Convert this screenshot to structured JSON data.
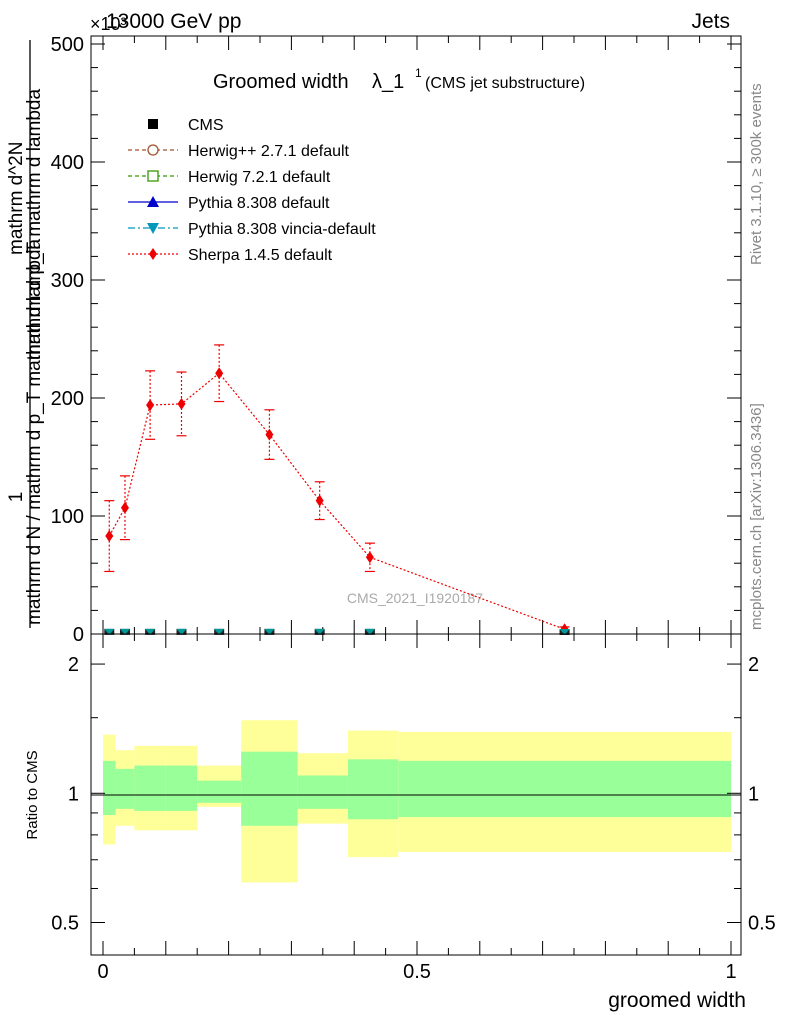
{
  "header": {
    "left": "13000 GeV pp",
    "right": "Jets",
    "exponent": "×10³"
  },
  "side_labels": {
    "rivet": "Rivet 3.1.10, ≥ 300k events",
    "mcplots": "mcplots.cern.ch [arXiv:1306.3436]"
  },
  "watermark": "CMS_2021_I1920187",
  "chart_data": [
    {
      "type": "line",
      "title": "Groomed width",
      "title_symbol": "λ_1",
      "title_sup": "1",
      "title_note": "(CMS jet substructure)",
      "ylabel_top": "1",
      "ylabel_bottom": "mathrm d N / mathrm d p_T mathrm d lambda",
      "ylabel_num": "mathrm d^2N",
      "ylabel_den": "mathrm d p_T mathrm d lambda",
      "xlim": [
        0,
        1
      ],
      "ylim": [
        0,
        500
      ],
      "yticks": [
        "0",
        "100",
        "200",
        "300",
        "400",
        "500"
      ],
      "legend": [
        {
          "name": "CMS",
          "color": "#000000",
          "marker": "square-filled"
        },
        {
          "name": "Herwig++ 2.7.1 default",
          "color": "#a0522d",
          "marker": "circle-open"
        },
        {
          "name": "Herwig 7.2.1 default",
          "color": "#339900",
          "marker": "square-open"
        },
        {
          "name": "Pythia 8.308 default",
          "color": "#0000cc",
          "marker": "triangle-up"
        },
        {
          "name": "Pythia 8.308 vincia-default",
          "color": "#0099bb",
          "marker": "triangle-down"
        },
        {
          "name": "Sherpa 1.4.5 default",
          "color": "#ee0000",
          "marker": "diamond"
        }
      ],
      "series": [
        {
          "name": "Sherpa 1.4.5 default",
          "x": [
            0.01,
            0.035,
            0.075,
            0.125,
            0.185,
            0.265,
            0.345,
            0.425,
            0.735
          ],
          "y": [
            83,
            107,
            194,
            195,
            221,
            169,
            113,
            65,
            4
          ],
          "err": [
            30,
            27,
            29,
            27,
            24,
            21,
            16,
            12,
            2
          ]
        },
        {
          "name": "CMS",
          "x": [
            0.01,
            0.035,
            0.075,
            0.125,
            0.185,
            0.265,
            0.345,
            0.425,
            0.735
          ],
          "y": [
            0.1,
            0.1,
            0.1,
            0.1,
            0.1,
            0.1,
            0.1,
            0.1,
            0.0
          ]
        }
      ]
    },
    {
      "type": "area",
      "ylabel": "Ratio to CMS",
      "xlabel": "groomed width",
      "xticks": [
        "0",
        "0.5",
        "1"
      ],
      "yticks": [
        "0.5",
        "1",
        "2"
      ],
      "ylim": [
        0.42,
        2.35
      ],
      "bins": [
        {
          "lo": 0.0,
          "hi": 0.02,
          "inner": [
            0.89,
            1.19
          ],
          "outer": [
            0.76,
            1.37
          ]
        },
        {
          "lo": 0.02,
          "hi": 0.05,
          "inner": [
            0.92,
            1.14
          ],
          "outer": [
            0.84,
            1.26
          ]
        },
        {
          "lo": 0.05,
          "hi": 0.1,
          "inner": [
            0.91,
            1.16
          ],
          "outer": [
            0.82,
            1.29
          ]
        },
        {
          "lo": 0.1,
          "hi": 0.15,
          "inner": [
            0.91,
            1.16
          ],
          "outer": [
            0.82,
            1.29
          ]
        },
        {
          "lo": 0.15,
          "hi": 0.22,
          "inner": [
            0.95,
            1.07
          ],
          "outer": [
            0.93,
            1.16
          ]
        },
        {
          "lo": 0.22,
          "hi": 0.31,
          "inner": [
            0.84,
            1.25
          ],
          "outer": [
            0.62,
            1.48
          ]
        },
        {
          "lo": 0.31,
          "hi": 0.39,
          "inner": [
            0.92,
            1.1
          ],
          "outer": [
            0.85,
            1.24
          ]
        },
        {
          "lo": 0.39,
          "hi": 0.47,
          "inner": [
            0.87,
            1.2
          ],
          "outer": [
            0.71,
            1.4
          ]
        },
        {
          "lo": 0.47,
          "hi": 1.0,
          "inner": [
            0.88,
            1.19
          ],
          "outer": [
            0.73,
            1.39
          ]
        }
      ]
    }
  ],
  "colors": {
    "inner_band": "#99ff99",
    "outer_band": "#ffff99",
    "sherpa": "#ee0000",
    "cms": "#000000",
    "vincia": "#009999"
  }
}
